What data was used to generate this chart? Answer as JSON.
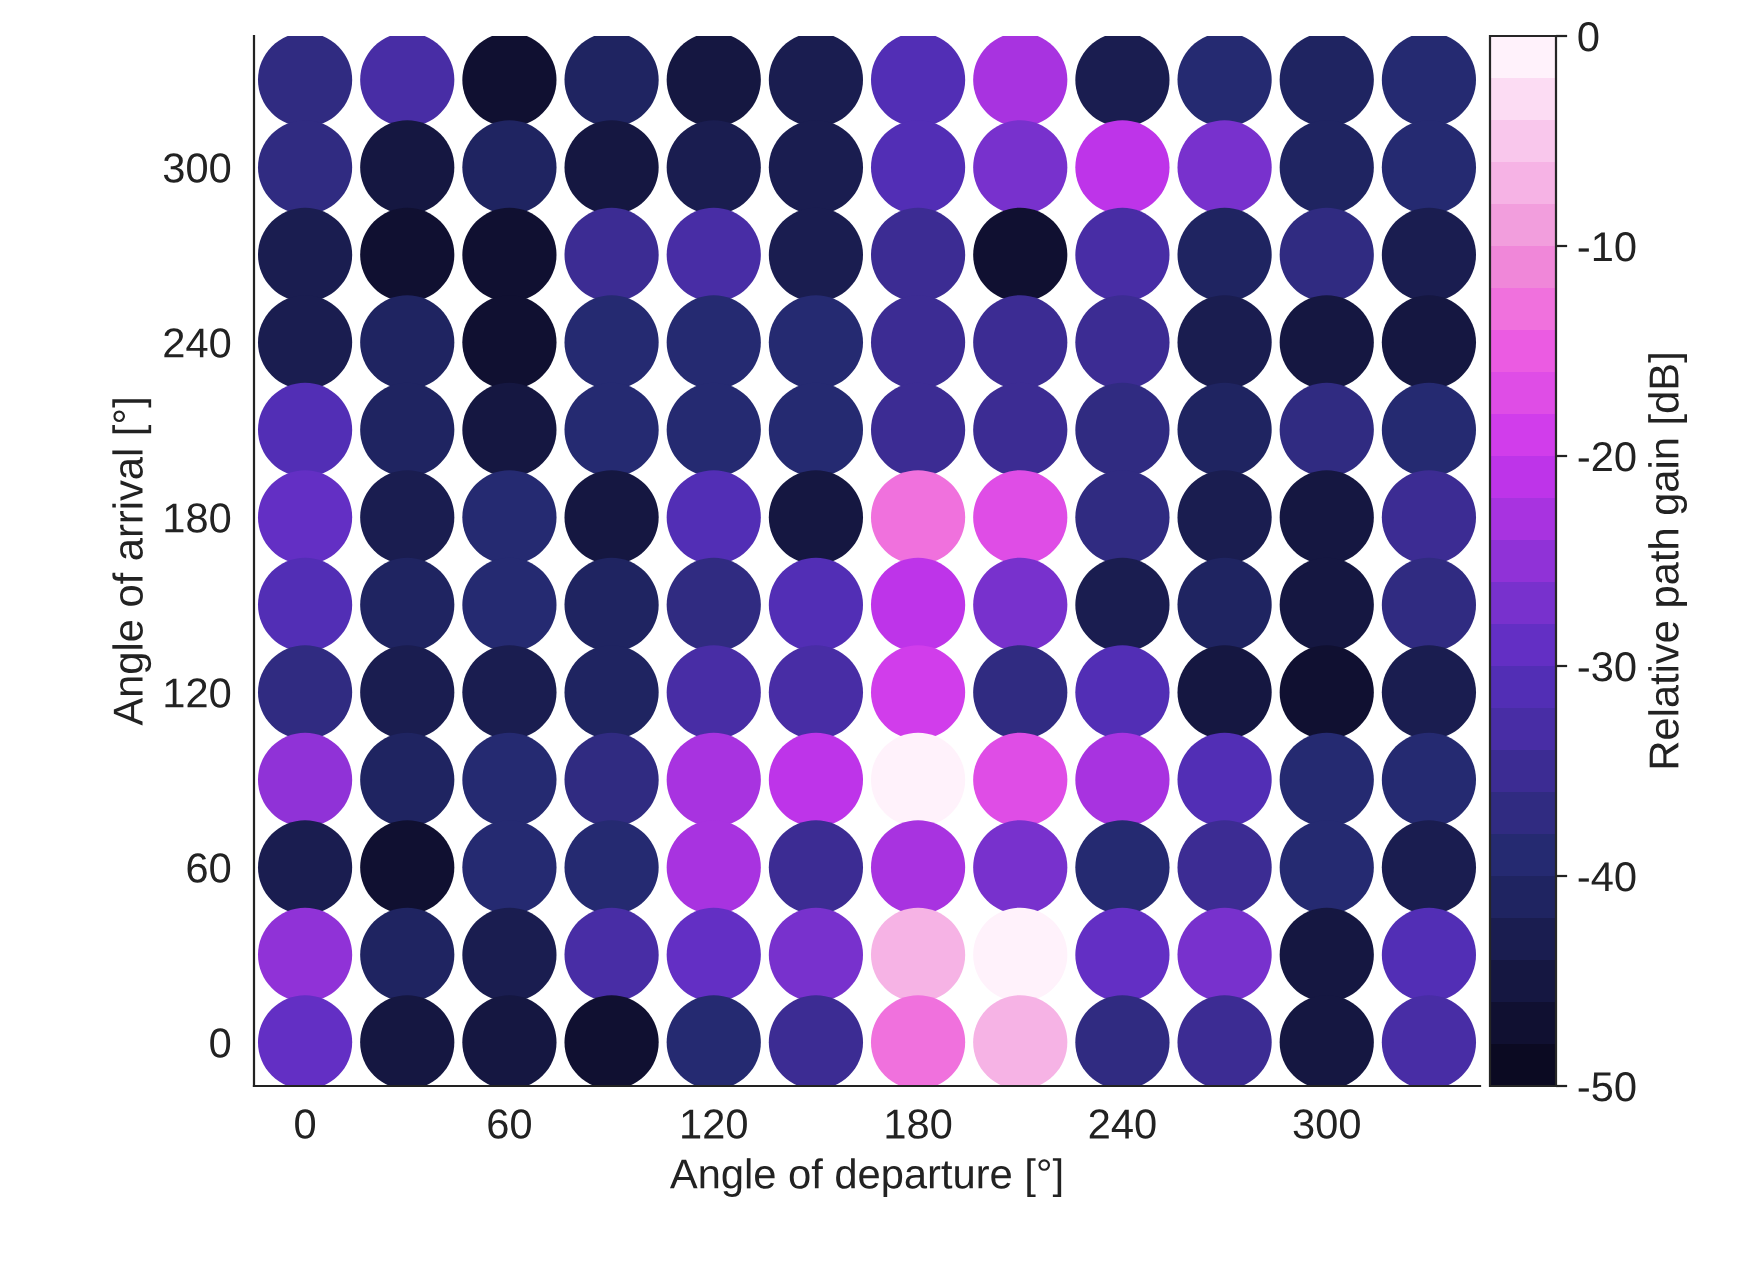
{
  "chart_data": {
    "type": "scatter",
    "xlabel": "Angle of departure [°]",
    "ylabel": "Angle of arrival [°]",
    "clabel": "Relative path gain [dB]",
    "xlim": [
      -15,
      345
    ],
    "ylim": [
      -15,
      345
    ],
    "xticks": [
      0,
      60,
      120,
      180,
      240,
      300
    ],
    "yticks": [
      0,
      60,
      120,
      180,
      240,
      300
    ],
    "clim": [
      -50,
      0
    ],
    "cticks": [
      -50,
      -40,
      -30,
      -20,
      -10,
      0
    ],
    "grid": false,
    "marker": "circle",
    "x": [
      0,
      30,
      60,
      90,
      120,
      150,
      180,
      210,
      240,
      270,
      300,
      330,
      0,
      30,
      60,
      90,
      120,
      150,
      180,
      210,
      240,
      270,
      300,
      330,
      0,
      30,
      60,
      90,
      120,
      150,
      180,
      210,
      240,
      270,
      300,
      330,
      0,
      30,
      60,
      90,
      120,
      150,
      180,
      210,
      240,
      270,
      300,
      330,
      0,
      30,
      60,
      90,
      120,
      150,
      180,
      210,
      240,
      270,
      300,
      330,
      0,
      30,
      60,
      90,
      120,
      150,
      180,
      210,
      240,
      270,
      300,
      330,
      0,
      30,
      60,
      90,
      120,
      150,
      180,
      210,
      240,
      270,
      300,
      330,
      0,
      30,
      60,
      90,
      120,
      150,
      180,
      210,
      240,
      270,
      300,
      330,
      0,
      30,
      60,
      90,
      120,
      150,
      180,
      210,
      240,
      270,
      300,
      330,
      0,
      30,
      60,
      90,
      120,
      150,
      180,
      210,
      240,
      270,
      300,
      330,
      0,
      30,
      60,
      90,
      120,
      150,
      180,
      210,
      240,
      270,
      300,
      330,
      0,
      30,
      60,
      90,
      120,
      150,
      180,
      210,
      240,
      270,
      300,
      330
    ],
    "values": [
      330,
      330,
      330,
      330,
      330,
      330,
      330,
      330,
      330,
      330,
      330,
      330,
      300,
      300,
      300,
      300,
      300,
      300,
      300,
      300,
      300,
      300,
      300,
      300,
      270,
      270,
      270,
      270,
      270,
      270,
      270,
      270,
      270,
      270,
      270,
      270,
      240,
      240,
      240,
      240,
      240,
      240,
      240,
      240,
      240,
      240,
      240,
      240,
      210,
      210,
      210,
      210,
      210,
      210,
      210,
      210,
      210,
      210,
      210,
      210,
      180,
      180,
      180,
      180,
      180,
      180,
      180,
      180,
      180,
      180,
      180,
      180,
      150,
      150,
      150,
      150,
      150,
      150,
      150,
      150,
      150,
      150,
      150,
      150,
      120,
      120,
      120,
      120,
      120,
      120,
      120,
      120,
      120,
      120,
      120,
      120,
      90,
      90,
      90,
      90,
      90,
      90,
      90,
      90,
      90,
      90,
      90,
      90,
      60,
      60,
      60,
      60,
      60,
      60,
      60,
      60,
      60,
      60,
      60,
      60,
      30,
      30,
      30,
      30,
      30,
      30,
      30,
      30,
      30,
      30,
      30,
      30,
      0,
      0,
      0,
      0,
      0,
      0,
      0,
      0,
      0,
      0,
      0,
      0
    ],
    "cvalues": [
      -38,
      -34,
      -48,
      -42,
      -46,
      -44,
      -32,
      -24,
      -44,
      -40,
      -42,
      -40,
      -38,
      -46,
      -42,
      -46,
      -44,
      -44,
      -32,
      -28,
      -22,
      -28,
      -42,
      -40,
      -44,
      -48,
      -48,
      -36,
      -34,
      -44,
      -36,
      -48,
      -34,
      -42,
      -38,
      -44,
      -44,
      -42,
      -48,
      -40,
      -40,
      -40,
      -36,
      -36,
      -36,
      -44,
      -46,
      -46,
      -32,
      -42,
      -46,
      -40,
      -40,
      -40,
      -36,
      -36,
      -38,
      -42,
      -38,
      -40,
      -30,
      -44,
      -40,
      -46,
      -32,
      -46,
      -14,
      -18,
      -38,
      -44,
      -46,
      -36,
      -32,
      -42,
      -40,
      -42,
      -38,
      -32,
      -22,
      -28,
      -44,
      -42,
      -46,
      -38,
      -38,
      -44,
      -44,
      -42,
      -34,
      -34,
      -20,
      -38,
      -32,
      -46,
      -48,
      -44,
      -26,
      -42,
      -40,
      -38,
      -24,
      -22,
      -2,
      -18,
      -24,
      -32,
      -40,
      -40,
      -44,
      -48,
      -40,
      -40,
      -24,
      -36,
      -24,
      -28,
      -40,
      -36,
      -40,
      -44,
      -26,
      -42,
      -44,
      -34,
      -30,
      -28,
      -8,
      -2,
      -30,
      -28,
      -46,
      -32,
      -30,
      -46,
      -46,
      -48,
      -40,
      -36,
      -14,
      -8,
      -38,
      -36,
      -46,
      -34
    ]
  }
}
